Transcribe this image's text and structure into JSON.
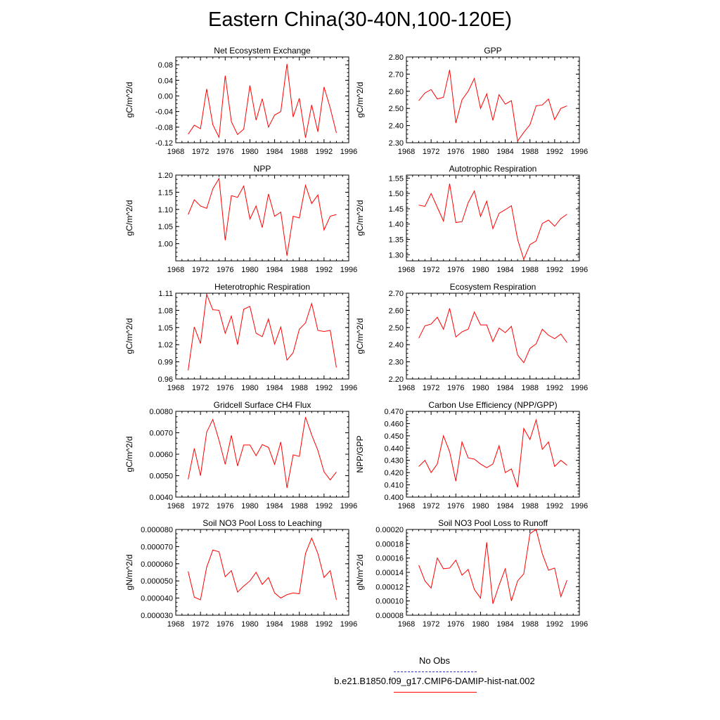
{
  "title": "Eastern China(30-40N,100-120E)",
  "legend": {
    "obs_label": "No Obs",
    "model_label": "b.e21.B1850.f09_g17.CMIP6-DAMIP-hist-nat.002",
    "obs_color": "#3333cc",
    "model_color": "#ff0000"
  },
  "chart_data": [
    {
      "type": "line",
      "title": "Net Ecosystem Exchange",
      "ylabel": "gC/m^2/d",
      "xlim": [
        1968,
        1996
      ],
      "ylim": [
        -0.12,
        0.1
      ],
      "xticks": [
        1968,
        1972,
        1976,
        1980,
        1984,
        1988,
        1992,
        1996
      ],
      "yticks": [
        -0.12,
        -0.08,
        -0.04,
        0.0,
        0.04,
        0.08
      ],
      "ytick_labels": [
        "-0.12",
        "-0.08",
        "-0.04",
        "0.00",
        "0.04",
        "0.08"
      ],
      "x": [
        1970,
        1971,
        1972,
        1973,
        1974,
        1975,
        1976,
        1977,
        1978,
        1979,
        1980,
        1981,
        1982,
        1983,
        1984,
        1985,
        1986,
        1987,
        1988,
        1989,
        1990,
        1991,
        1992,
        1993,
        1994
      ],
      "series": [
        {
          "color": "#ff0000",
          "values": [
            -0.098,
            -0.075,
            -0.084,
            0.018,
            -0.074,
            -0.106,
            0.052,
            -0.066,
            -0.099,
            -0.085,
            0.027,
            -0.062,
            -0.007,
            -0.08,
            -0.049,
            -0.04,
            0.082,
            -0.054,
            -0.006,
            -0.107,
            -0.023,
            -0.092,
            0.023,
            -0.031,
            -0.095
          ]
        }
      ]
    },
    {
      "type": "line",
      "title": "GPP",
      "ylabel": "gC/m^2/d",
      "xlim": [
        1968,
        1996
      ],
      "ylim": [
        2.3,
        2.8
      ],
      "xticks": [
        1968,
        1972,
        1976,
        1980,
        1984,
        1988,
        1992,
        1996
      ],
      "yticks": [
        2.3,
        2.4,
        2.5,
        2.6,
        2.7,
        2.8
      ],
      "ytick_labels": [
        "2.30",
        "2.40",
        "2.50",
        "2.60",
        "2.70",
        "2.80"
      ],
      "x": [
        1970,
        1971,
        1972,
        1973,
        1974,
        1975,
        1976,
        1977,
        1978,
        1979,
        1980,
        1981,
        1982,
        1983,
        1984,
        1985,
        1986,
        1987,
        1988,
        1989,
        1990,
        1991,
        1992,
        1993,
        1994
      ],
      "series": [
        {
          "color": "#ff0000",
          "values": [
            2.545,
            2.59,
            2.61,
            2.555,
            2.565,
            2.725,
            2.415,
            2.55,
            2.6,
            2.675,
            2.5,
            2.585,
            2.43,
            2.58,
            2.525,
            2.545,
            2.31,
            2.36,
            2.405,
            2.515,
            2.52,
            2.555,
            2.435,
            2.5,
            2.515
          ]
        }
      ]
    },
    {
      "type": "line",
      "title": "NPP",
      "ylabel": "gC/m^2/d",
      "xlim": [
        1968,
        1996
      ],
      "ylim": [
        0.95,
        1.2
      ],
      "xticks": [
        1968,
        1972,
        1976,
        1980,
        1984,
        1988,
        1992,
        1996
      ],
      "yticks": [
        1.0,
        1.05,
        1.1,
        1.15,
        1.2
      ],
      "ytick_labels": [
        "1.00",
        "1.05",
        "1.10",
        "1.15",
        "1.20"
      ],
      "x": [
        1970,
        1971,
        1972,
        1973,
        1974,
        1975,
        1976,
        1977,
        1978,
        1979,
        1980,
        1981,
        1982,
        1983,
        1984,
        1985,
        1986,
        1987,
        1988,
        1989,
        1990,
        1991,
        1992,
        1993,
        1994
      ],
      "series": [
        {
          "color": "#ff0000",
          "values": [
            1.085,
            1.128,
            1.11,
            1.103,
            1.16,
            1.19,
            1.01,
            1.14,
            1.135,
            1.168,
            1.072,
            1.11,
            1.047,
            1.145,
            1.08,
            1.092,
            0.965,
            1.08,
            1.075,
            1.17,
            1.117,
            1.142,
            1.04,
            1.08,
            1.085
          ]
        }
      ]
    },
    {
      "type": "line",
      "title": "Autotrophic Respiration",
      "ylabel": "gC/m^2/d",
      "xlim": [
        1968,
        1996
      ],
      "ylim": [
        1.28,
        1.56
      ],
      "xticks": [
        1968,
        1972,
        1976,
        1980,
        1984,
        1988,
        1992,
        1996
      ],
      "yticks": [
        1.3,
        1.35,
        1.4,
        1.45,
        1.5,
        1.55
      ],
      "ytick_labels": [
        "1.30",
        "1.35",
        "1.40",
        "1.45",
        "1.50",
        "1.55"
      ],
      "x": [
        1970,
        1971,
        1972,
        1973,
        1974,
        1975,
        1976,
        1977,
        1978,
        1979,
        1980,
        1981,
        1982,
        1983,
        1984,
        1985,
        1986,
        1987,
        1988,
        1989,
        1990,
        1991,
        1992,
        1993,
        1994
      ],
      "series": [
        {
          "color": "#ff0000",
          "values": [
            1.462,
            1.458,
            1.5,
            1.455,
            1.41,
            1.532,
            1.405,
            1.408,
            1.47,
            1.508,
            1.425,
            1.475,
            1.385,
            1.435,
            1.447,
            1.46,
            1.35,
            1.285,
            1.333,
            1.345,
            1.402,
            1.413,
            1.393,
            1.418,
            1.432
          ]
        }
      ]
    },
    {
      "type": "line",
      "title": "Heterotrophic Respiration",
      "ylabel": "gC/m^2/d",
      "xlim": [
        1968,
        1996
      ],
      "ylim": [
        0.96,
        1.11
      ],
      "xticks": [
        1968,
        1972,
        1976,
        1980,
        1984,
        1988,
        1992,
        1996
      ],
      "yticks": [
        0.96,
        0.99,
        1.02,
        1.05,
        1.08,
        1.11
      ],
      "ytick_labels": [
        "0.96",
        "0.99",
        "1.02",
        "1.05",
        "1.08",
        "1.11"
      ],
      "x": [
        1970,
        1971,
        1972,
        1973,
        1974,
        1975,
        1976,
        1977,
        1978,
        1979,
        1980,
        1981,
        1982,
        1983,
        1984,
        1985,
        1986,
        1987,
        1988,
        1989,
        1990,
        1991,
        1992,
        1993,
        1994
      ],
      "series": [
        {
          "color": "#ff0000",
          "values": [
            0.975,
            1.051,
            1.022,
            1.108,
            1.081,
            1.08,
            1.04,
            1.07,
            1.02,
            1.082,
            1.087,
            1.04,
            1.034,
            1.065,
            1.021,
            1.051,
            0.993,
            1.006,
            1.047,
            1.058,
            1.092,
            1.045,
            1.043,
            1.045,
            0.98
          ]
        }
      ]
    },
    {
      "type": "line",
      "title": "Ecosystem Respiration",
      "ylabel": "gC/m^2/d",
      "xlim": [
        1968,
        1996
      ],
      "ylim": [
        2.2,
        2.7
      ],
      "xticks": [
        1968,
        1972,
        1976,
        1980,
        1984,
        1988,
        1992,
        1996
      ],
      "yticks": [
        2.2,
        2.3,
        2.4,
        2.5,
        2.6,
        2.7
      ],
      "ytick_labels": [
        "2.20",
        "2.30",
        "2.40",
        "2.50",
        "2.60",
        "2.70"
      ],
      "x": [
        1970,
        1971,
        1972,
        1973,
        1974,
        1975,
        1976,
        1977,
        1978,
        1979,
        1980,
        1981,
        1982,
        1983,
        1984,
        1985,
        1986,
        1987,
        1988,
        1989,
        1990,
        1991,
        1992,
        1993,
        1994
      ],
      "series": [
        {
          "color": "#ff0000",
          "values": [
            2.438,
            2.51,
            2.52,
            2.56,
            2.49,
            2.612,
            2.445,
            2.475,
            2.49,
            2.59,
            2.515,
            2.515,
            2.418,
            2.497,
            2.47,
            2.507,
            2.34,
            2.295,
            2.378,
            2.405,
            2.49,
            2.455,
            2.435,
            2.462,
            2.412
          ]
        }
      ]
    },
    {
      "type": "line",
      "title": "Gridcell Surface CH4 Flux",
      "ylabel": "gC/m^2/d",
      "xlim": [
        1968,
        1996
      ],
      "ylim": [
        0.004,
        0.008
      ],
      "xticks": [
        1968,
        1972,
        1976,
        1980,
        1984,
        1988,
        1992,
        1996
      ],
      "yticks": [
        0.004,
        0.005,
        0.006,
        0.007,
        0.008
      ],
      "ytick_labels": [
        "0.0040",
        "0.0050",
        "0.0060",
        "0.0070",
        "0.0080"
      ],
      "x": [
        1970,
        1971,
        1972,
        1973,
        1974,
        1975,
        1976,
        1977,
        1978,
        1979,
        1980,
        1981,
        1982,
        1983,
        1984,
        1985,
        1986,
        1987,
        1988,
        1989,
        1990,
        1991,
        1992,
        1993,
        1994
      ],
      "series": [
        {
          "color": "#ff0000",
          "values": [
            0.00483,
            0.00627,
            0.005,
            0.00703,
            0.00762,
            0.00665,
            0.00553,
            0.00688,
            0.00545,
            0.00643,
            0.00643,
            0.00593,
            0.00645,
            0.00632,
            0.00553,
            0.00657,
            0.00443,
            0.00597,
            0.0059,
            0.00773,
            0.0069,
            0.00618,
            0.00518,
            0.0048,
            0.00517
          ]
        }
      ]
    },
    {
      "type": "line",
      "title": "Carbon Use Efficiency (NPP/GPP)",
      "ylabel": "NPP/GPP",
      "xlim": [
        1968,
        1996
      ],
      "ylim": [
        0.4,
        0.47
      ],
      "xticks": [
        1968,
        1972,
        1976,
        1980,
        1984,
        1988,
        1992,
        1996
      ],
      "yticks": [
        0.4,
        0.41,
        0.42,
        0.43,
        0.44,
        0.45,
        0.46,
        0.47
      ],
      "ytick_labels": [
        "0.400",
        "0.410",
        "0.420",
        "0.430",
        "0.440",
        "0.450",
        "0.460",
        "0.470"
      ],
      "x": [
        1970,
        1971,
        1972,
        1973,
        1974,
        1975,
        1976,
        1977,
        1978,
        1979,
        1980,
        1981,
        1982,
        1983,
        1984,
        1985,
        1986,
        1987,
        1988,
        1989,
        1990,
        1991,
        1992,
        1993,
        1994
      ],
      "series": [
        {
          "color": "#ff0000",
          "values": [
            0.425,
            0.43,
            0.42,
            0.427,
            0.45,
            0.437,
            0.413,
            0.445,
            0.432,
            0.431,
            0.427,
            0.424,
            0.427,
            0.442,
            0.42,
            0.423,
            0.408,
            0.456,
            0.447,
            0.463,
            0.439,
            0.445,
            0.425,
            0.43,
            0.426
          ]
        }
      ]
    },
    {
      "type": "line",
      "title": "Soil NO3 Pool Loss to Leaching",
      "ylabel": "gN/m^2/d",
      "xlim": [
        1968,
        1996
      ],
      "ylim": [
        3e-05,
        8e-05
      ],
      "xticks": [
        1968,
        1972,
        1976,
        1980,
        1984,
        1988,
        1992,
        1996
      ],
      "yticks": [
        3e-05,
        4e-05,
        5e-05,
        6e-05,
        7e-05,
        8e-05
      ],
      "ytick_labels": [
        "0.000030",
        "0.000040",
        "0.000050",
        "0.000060",
        "0.000070",
        "0.000080"
      ],
      "x": [
        1970,
        1971,
        1972,
        1973,
        1974,
        1975,
        1976,
        1977,
        1978,
        1979,
        1980,
        1981,
        1982,
        1983,
        1984,
        1985,
        1986,
        1987,
        1988,
        1989,
        1990,
        1991,
        1992,
        1993,
        1994
      ],
      "series": [
        {
          "color": "#ff0000",
          "values": [
            5.55e-05,
            4.05e-05,
            3.9e-05,
            5.8e-05,
            6.8e-05,
            6.7e-05,
            5.25e-05,
            5.6e-05,
            4.35e-05,
            4.7e-05,
            5e-05,
            5.5e-05,
            4.8e-05,
            5.2e-05,
            4.3e-05,
            4e-05,
            4.2e-05,
            4.3e-05,
            4.25e-05,
            6.6e-05,
            7.5e-05,
            6.6e-05,
            5.2e-05,
            5.6e-05,
            3.9e-05
          ]
        }
      ]
    },
    {
      "type": "line",
      "title": "Soil NO3 Pool Loss to Runoff",
      "ylabel": "gN/m^2/d",
      "xlim": [
        1968,
        1996
      ],
      "ylim": [
        8e-05,
        0.0002
      ],
      "xticks": [
        1968,
        1972,
        1976,
        1980,
        1984,
        1988,
        1992,
        1996
      ],
      "yticks": [
        8e-05,
        0.0001,
        0.00012,
        0.00014,
        0.00016,
        0.00018,
        0.0002
      ],
      "ytick_labels": [
        "0.00008",
        "0.00010",
        "0.00012",
        "0.00014",
        "0.00016",
        "0.00018",
        "0.00020"
      ],
      "x": [
        1970,
        1971,
        1972,
        1973,
        1974,
        1975,
        1976,
        1977,
        1978,
        1979,
        1980,
        1981,
        1982,
        1983,
        1984,
        1985,
        1986,
        1987,
        1988,
        1989,
        1990,
        1991,
        1992,
        1993,
        1994
      ],
      "series": [
        {
          "color": "#ff0000",
          "values": [
            0.00015,
            0.000128,
            0.000118,
            0.00016,
            0.000145,
            0.000146,
            0.000157,
            0.000136,
            0.000144,
            0.000116,
            0.000104,
            0.000182,
            9.6e-05,
            0.000122,
            0.000145,
            0.0001,
            0.000128,
            0.000138,
            0.000194,
            0.0002,
            0.000166,
            0.000143,
            0.000146,
            0.000106,
            0.000129
          ]
        }
      ]
    }
  ]
}
